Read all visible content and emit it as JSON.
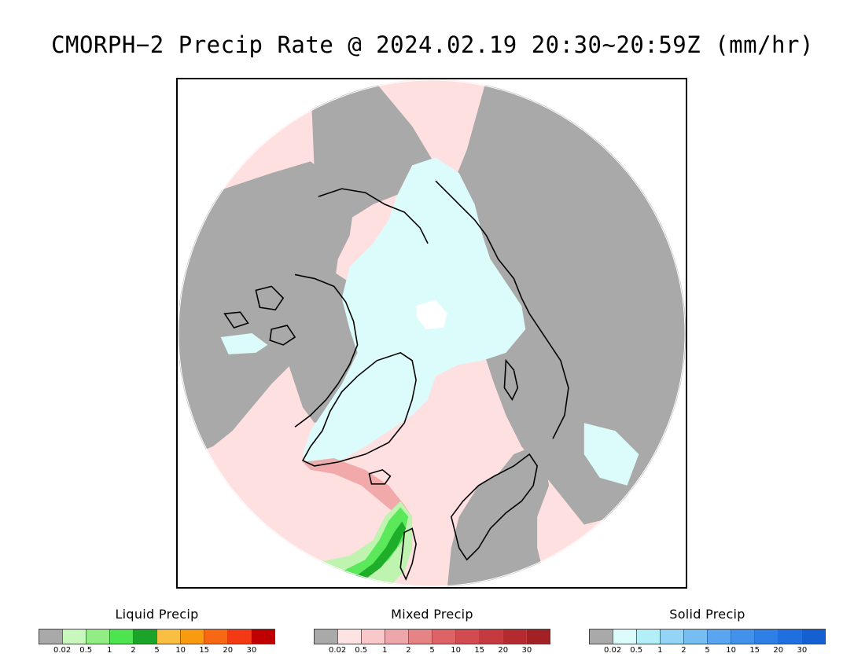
{
  "title": "CMORPH−2 Precip Rate @ 2024.02.19 20:30~20:59Z (mm/hr)",
  "map": {
    "projection": "north polar stereographic",
    "colors": {
      "no_precip": "#a9a9a9",
      "mixed_light": "#ffe0e0",
      "snow_light": "#dcfcfc",
      "rain_light": "#bff3b0",
      "rain_mid": "#5be85b",
      "rain_heavy": "#1fae2a",
      "mixed_mid": "#ef9fa0",
      "coast": "#000000"
    }
  },
  "legends": [
    {
      "title": "Liquid Precip",
      "colors": [
        "#a9a9a9",
        "#c8f8bd",
        "#92ed85",
        "#4ee44f",
        "#1ca42a",
        "#f9bf43",
        "#f99b10",
        "#f86814",
        "#f33a15",
        "#c00000"
      ],
      "labels": [
        "0.02",
        "0.5",
        "1",
        "2",
        "5",
        "10",
        "15",
        "20",
        "30"
      ]
    },
    {
      "title": "Mixed Precip",
      "colors": [
        "#a9a9a9",
        "#fde3e3",
        "#f9c8ca",
        "#eda7aa",
        "#e58385",
        "#dd6367",
        "#d24b50",
        "#c53a3e",
        "#b32b2f",
        "#a12125"
      ],
      "labels": [
        "0.02",
        "0.5",
        "1",
        "2",
        "5",
        "10",
        "15",
        "20",
        "30"
      ]
    },
    {
      "title": "Solid Precip",
      "colors": [
        "#a9a9a9",
        "#dcfcfc",
        "#b3eff6",
        "#96d4f5",
        "#76bdf2",
        "#5aa5ef",
        "#4292eb",
        "#2f80e6",
        "#1f6fe0",
        "#145fd2"
      ],
      "labels": [
        "0.02",
        "0.5",
        "1",
        "2",
        "5",
        "10",
        "15",
        "20",
        "30"
      ]
    }
  ]
}
